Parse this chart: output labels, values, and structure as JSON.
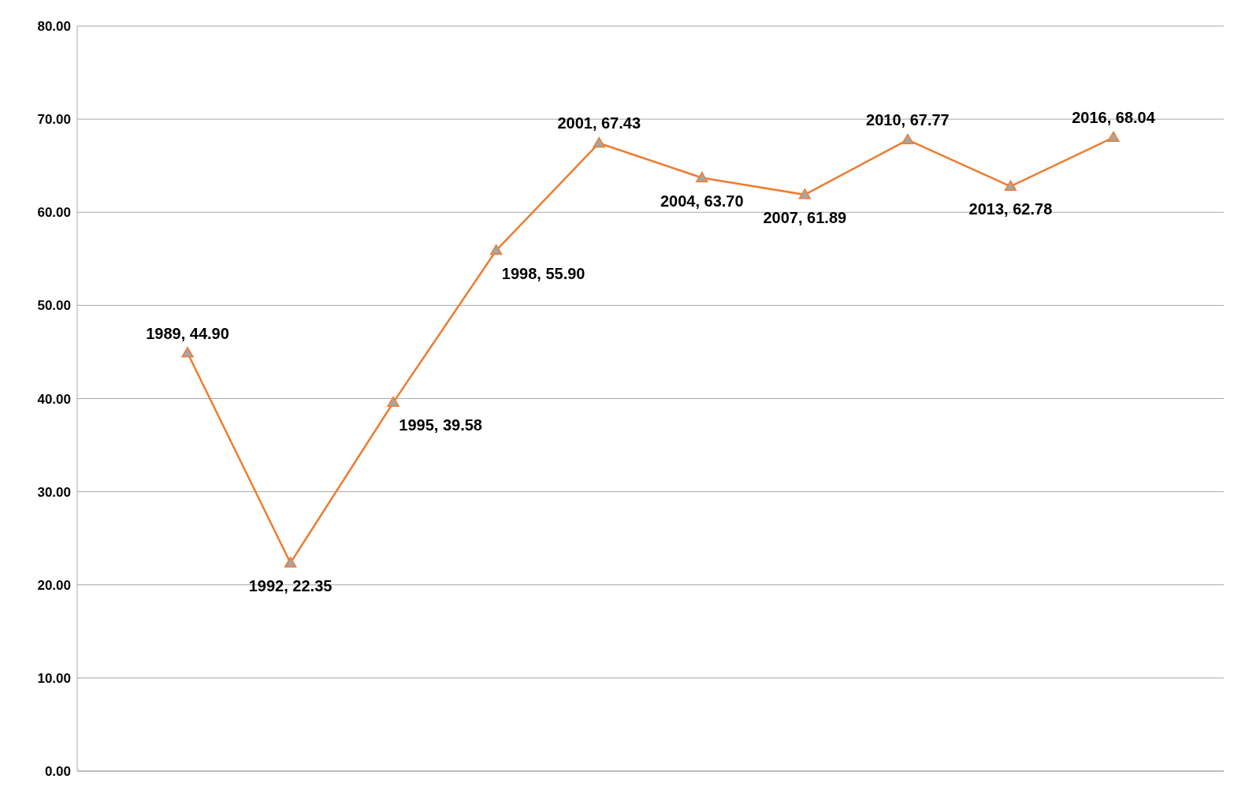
{
  "chart_data": {
    "type": "line",
    "categories": [
      null,
      null,
      null,
      null,
      null,
      null,
      null,
      null,
      null,
      null
    ],
    "series": [
      {
        "color": "#ed7d31",
        "values": [
          44.9,
          22.35,
          39.58,
          55.9,
          67.43,
          63.7,
          61.89,
          67.77,
          62.78,
          68.04
        ],
        "value_labels": [
          "1989, 44.90",
          "1992, 22.35",
          "1995, 39.58",
          "1998, 55.90",
          "2001, 67.43",
          "2004, 63.70",
          "2007, 61.89",
          "2010, 67.77",
          "2013, 62.78",
          "2016, 68.04"
        ]
      }
    ],
    "ylim": [
      0,
      80
    ],
    "yticks": [
      {
        "value": 0,
        "label": "0.00"
      },
      {
        "value": 10,
        "label": "10.00"
      },
      {
        "value": 20,
        "label": "20.00"
      },
      {
        "value": 30,
        "label": "30.00"
      },
      {
        "value": 40,
        "label": "40.00"
      },
      {
        "value": 50,
        "label": "50.00"
      },
      {
        "value": 60,
        "label": "60.00"
      },
      {
        "value": 70,
        "label": "70.00"
      },
      {
        "value": 80,
        "label": "80.00"
      }
    ],
    "tick_labels": "y",
    "grid": "y",
    "marker": "triangle",
    "line_style": "solid"
  }
}
